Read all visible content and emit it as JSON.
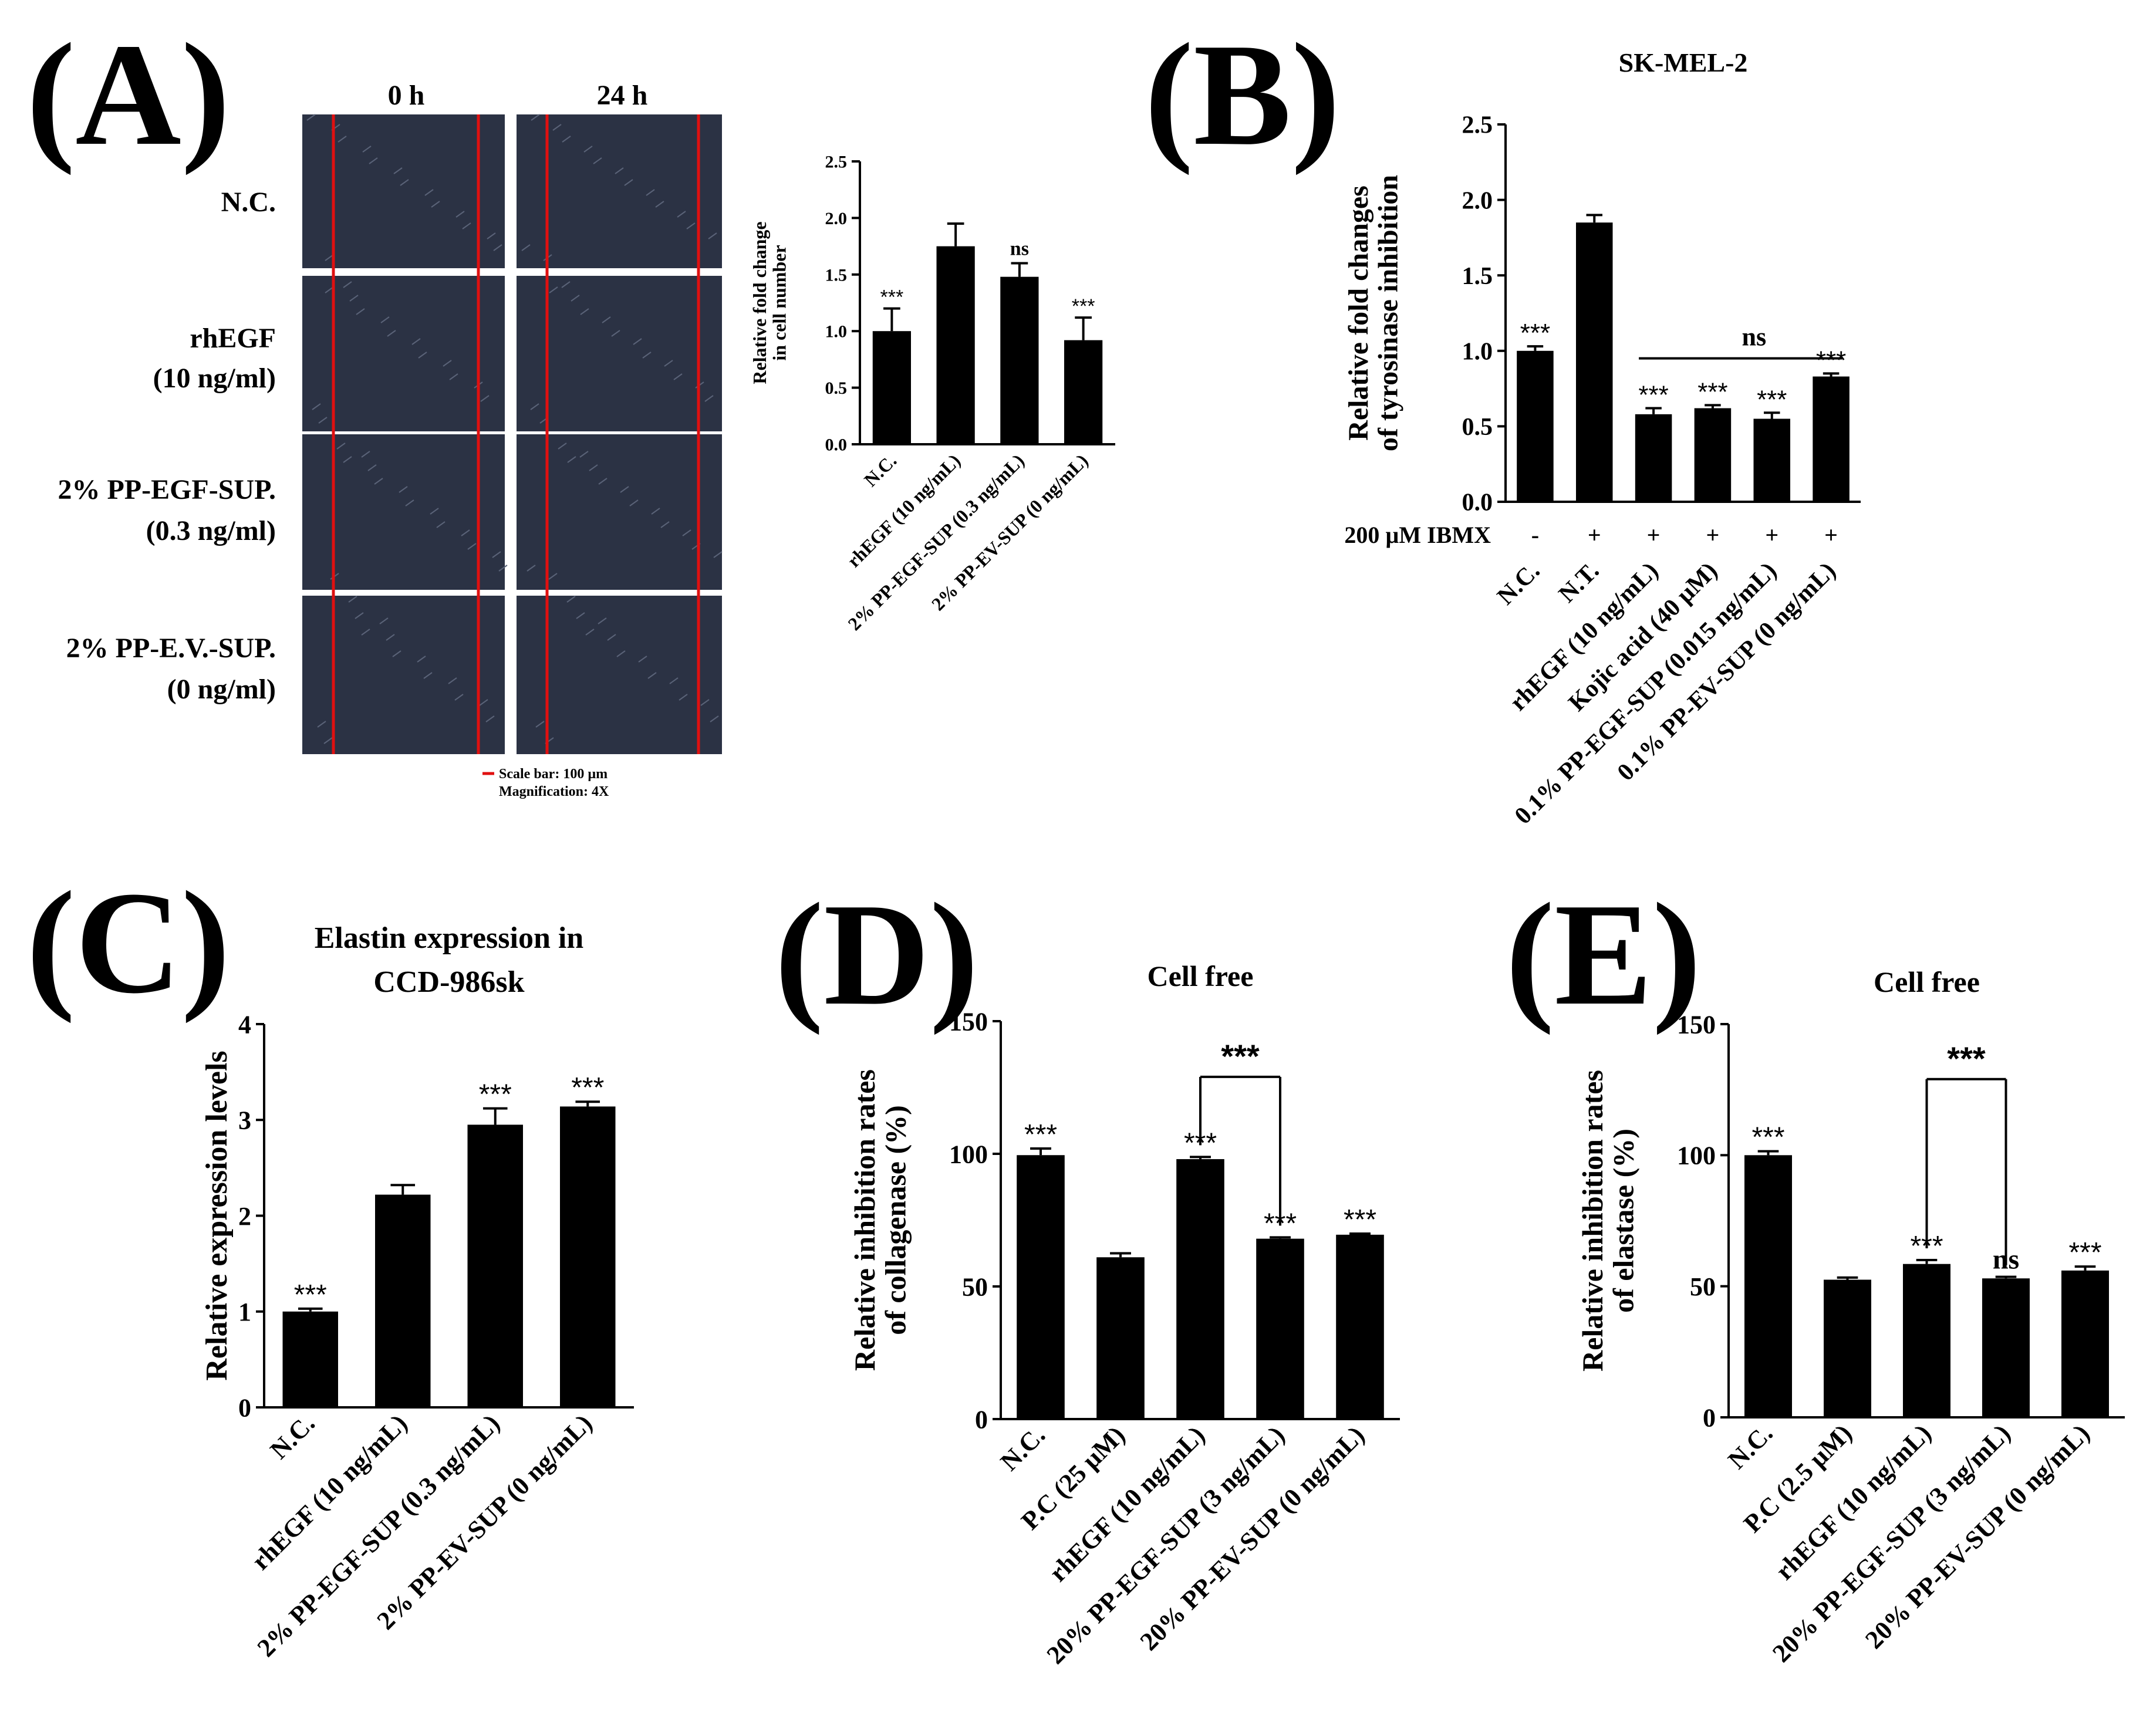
{
  "panels": {
    "A": {
      "letter": "(A)",
      "micrograph": {
        "col_headers": [
          "0 h",
          "24 h"
        ],
        "row_labels": [
          [
            "N.C."
          ],
          [
            "rhEGF",
            "(10 ng/ml)"
          ],
          [
            "2% PP-EGF-SUP.",
            "(0.3 ng/ml)"
          ],
          [
            "2% PP-E.V.-SUP.",
            "(0 ng/ml)"
          ]
        ],
        "scale_note": "Scale bar: 100 µm",
        "magnification_note": "Magnification: 4X",
        "line_color": "#e01010",
        "image_color": "#2b3244"
      }
    },
    "B": {
      "letter": "(B)"
    },
    "C": {
      "letter": "(C)"
    },
    "D": {
      "letter": "(D)"
    },
    "E": {
      "letter": "(E)"
    }
  },
  "chart_data": [
    {
      "id": "A",
      "type": "bar",
      "title": "",
      "ylabel": [
        "Relative fold change",
        "in cell number"
      ],
      "xlabel": "",
      "ylim": [
        0,
        2.5
      ],
      "yticks": [
        "0.0",
        "0.5",
        "1.0",
        "1.5",
        "2.0",
        "2.5"
      ],
      "categories": [
        "N.C.",
        "rhEGF (10 ng/mL)",
        "2% PP-EGF-SUP (0.3 ng/mL)",
        "2% PP-EV-SUP (0 ng/mL)"
      ],
      "values": [
        1.0,
        1.75,
        1.48,
        0.92
      ],
      "errors": [
        0.2,
        0.2,
        0.12,
        0.2
      ],
      "annotations": [
        "***",
        "",
        "ns",
        "***"
      ],
      "bar_color": "#000000"
    },
    {
      "id": "B",
      "type": "bar",
      "title": "SK-MEL-2",
      "ylabel": [
        "Relative fold changes",
        "of tyrosinase inhibition"
      ],
      "xlabel": "",
      "ylim": [
        0,
        2.5
      ],
      "yticks": [
        "0.0",
        "0.5",
        "1.0",
        "1.5",
        "2.0",
        "2.5"
      ],
      "categories": [
        "N.C.",
        "N.T.",
        "rhEGF (10 ng/mL)",
        "Kojic acid (40 µM)",
        "0.1% PP-EGF-SUP (0.015 ng/mL)",
        "0.1% PP-EV-SUP (0 ng/mL)"
      ],
      "values": [
        1.0,
        1.85,
        0.58,
        0.62,
        0.55,
        0.83
      ],
      "errors": [
        0.03,
        0.05,
        0.04,
        0.02,
        0.04,
        0.02
      ],
      "annotations": [
        "***",
        "",
        "***",
        "***",
        "***",
        "***"
      ],
      "treatment_label": "200 µM IBMX",
      "treatment_signs": [
        "-",
        "+",
        "+",
        "+",
        "+",
        "+"
      ],
      "group_bracket": {
        "from": 2,
        "to": 5,
        "label": "ns"
      },
      "bar_color": "#000000"
    },
    {
      "id": "C",
      "type": "bar",
      "title": [
        "Elastin expression in",
        "CCD-986sk"
      ],
      "ylabel": [
        "Relative expression levels"
      ],
      "xlabel": "",
      "ylim": [
        0,
        4
      ],
      "yticks": [
        "0",
        "1",
        "2",
        "3",
        "4"
      ],
      "categories": [
        "N.C.",
        "rhEGF (10 ng/mL)",
        "2% PP-EGF-SUP (0.3 ng/mL)",
        "2% PP-EV-SUP (0 ng/mL)"
      ],
      "values": [
        1.0,
        2.22,
        2.95,
        3.14
      ],
      "errors": [
        0.03,
        0.1,
        0.17,
        0.05
      ],
      "annotations": [
        "***",
        "",
        "***",
        "***"
      ],
      "bar_color": "#000000"
    },
    {
      "id": "D",
      "type": "bar",
      "title": "Cell free",
      "ylabel": [
        "Relative inhibition rates",
        "of collagenase (%)"
      ],
      "xlabel": "",
      "ylim": [
        0,
        150
      ],
      "yticks": [
        "0",
        "50",
        "100",
        "150"
      ],
      "categories": [
        "N.C.",
        "P.C (25 µM)",
        "rhEGF (10 ng/mL)",
        "20% PP-EGF-SUP (3 ng/mL)",
        "20% PP-EV-SUP (0 ng/mL)"
      ],
      "values": [
        99.5,
        61,
        98,
        68,
        69.5
      ],
      "errors": [
        2.5,
        1.5,
        0.8,
        0.5,
        0.4
      ],
      "annotations": [
        "***",
        "",
        "***",
        "***",
        "***"
      ],
      "bracket": {
        "from": 2,
        "to": 3,
        "label": "***"
      },
      "bar_color": "#000000"
    },
    {
      "id": "E",
      "type": "bar",
      "title": "Cell free",
      "ylabel": [
        "Relative inhibition rates",
        "of elastase (%)"
      ],
      "xlabel": "",
      "ylim": [
        0,
        150
      ],
      "yticks": [
        "0",
        "50",
        "100",
        "150"
      ],
      "categories": [
        "N.C.",
        "P.C (2.5 µM)",
        "rhEGF (10 ng/mL)",
        "20% PP-EGF-SUP (3 ng/mL)",
        "20% PP-EV-SUP (0 ng/mL)"
      ],
      "values": [
        100,
        52.5,
        58.5,
        53,
        56
      ],
      "errors": [
        1.5,
        0.8,
        1.5,
        0.6,
        1.5
      ],
      "annotations": [
        "***",
        "",
        "***",
        "ns",
        "***"
      ],
      "bracket": {
        "from": 2,
        "to": 3,
        "label": "***"
      },
      "bar_color": "#000000"
    }
  ]
}
